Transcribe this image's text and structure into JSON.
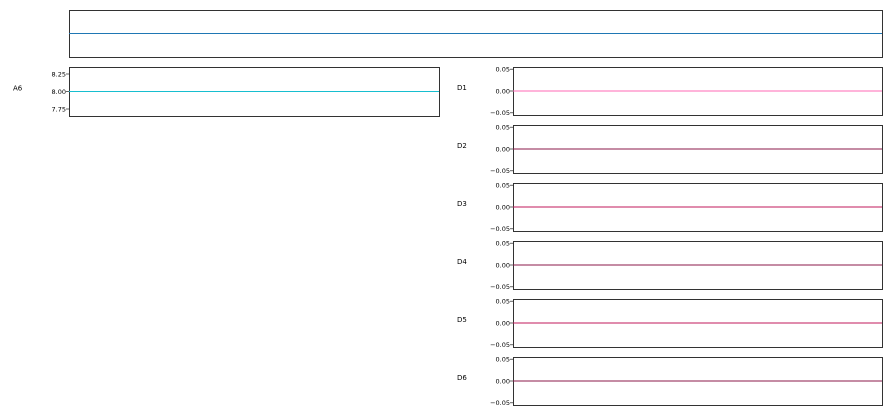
{
  "chart_data": [
    {
      "type": "line",
      "label": "",
      "x": [
        0,
        1
      ],
      "series": [
        {
          "values": [
            0,
            0
          ]
        }
      ],
      "yticks": [],
      "ylim": [
        -1,
        1
      ],
      "color": "#1f77b4"
    },
    {
      "type": "line",
      "label": "A6",
      "x": [
        0,
        1
      ],
      "series": [
        {
          "values": [
            8.0,
            8.0
          ]
        }
      ],
      "yticks": [
        "8.25",
        "8.00",
        "7.75"
      ],
      "ylim": [
        7.65,
        8.35
      ],
      "color": "#17becf"
    },
    {
      "type": "line",
      "label": "D1",
      "x": [
        0,
        1
      ],
      "series": [
        {
          "values": [
            0,
            0
          ]
        }
      ],
      "yticks": [
        "0.05",
        "0.00",
        "−0.05"
      ],
      "ylim": [
        -0.055,
        0.055
      ],
      "color": "#ff69b4"
    },
    {
      "type": "line",
      "label": "D2",
      "x": [
        0,
        1
      ],
      "series": [
        {
          "values": [
            0,
            0
          ]
        }
      ],
      "yticks": [
        "0.05",
        "0.00",
        "−0.05"
      ],
      "ylim": [
        -0.055,
        0.055
      ],
      "color": "#8b1a4a"
    },
    {
      "type": "line",
      "label": "D3",
      "x": [
        0,
        1
      ],
      "series": [
        {
          "values": [
            0,
            0
          ]
        }
      ],
      "yticks": [
        "0.05",
        "0.00",
        "−0.05"
      ],
      "ylim": [
        -0.055,
        0.055
      ],
      "color": "#c2185b"
    },
    {
      "type": "line",
      "label": "D4",
      "x": [
        0,
        1
      ],
      "series": [
        {
          "values": [
            0,
            0
          ]
        }
      ],
      "yticks": [
        "0.05",
        "0.00",
        "−0.05"
      ],
      "ylim": [
        -0.055,
        0.055
      ],
      "color": "#8b1a4a"
    },
    {
      "type": "line",
      "label": "D5",
      "x": [
        0,
        1
      ],
      "series": [
        {
          "values": [
            0,
            0
          ]
        }
      ],
      "yticks": [
        "0.05",
        "0.00",
        "−0.05"
      ],
      "ylim": [
        -0.055,
        0.055
      ],
      "color": "#c2185b"
    },
    {
      "type": "line",
      "label": "D6",
      "x": [
        0,
        1
      ],
      "series": [
        {
          "values": [
            0,
            0
          ]
        }
      ],
      "yticks": [
        "0.05",
        "0.00",
        "−0.05"
      ],
      "ylim": [
        -0.055,
        0.055
      ],
      "color": "#8b1a4a"
    }
  ]
}
